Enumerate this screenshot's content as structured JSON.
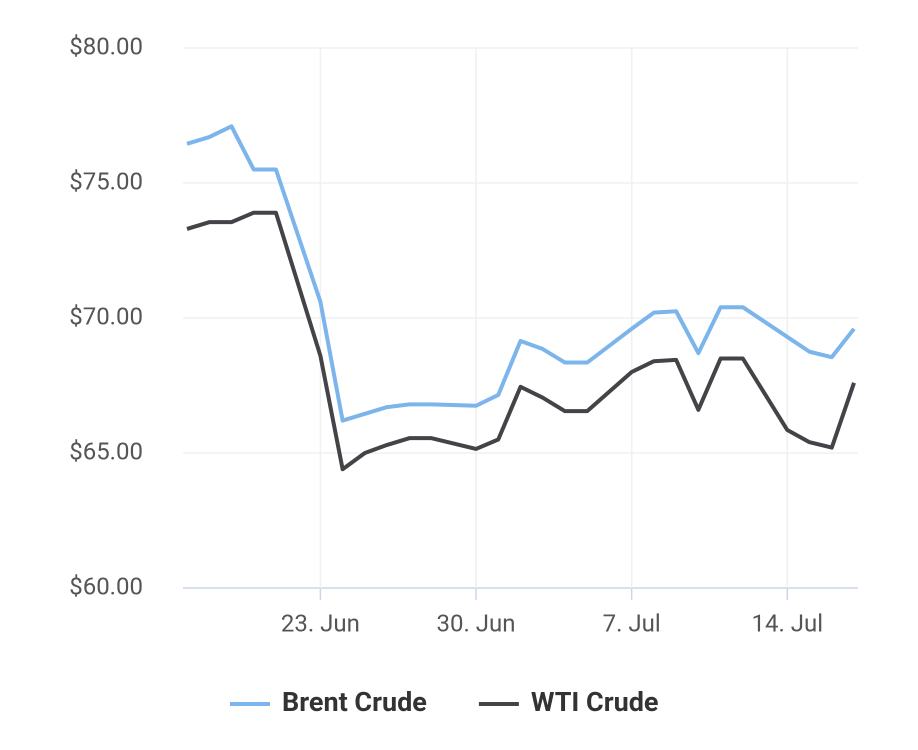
{
  "chart_data": {
    "type": "line",
    "x": [
      "17. Jun",
      "18. Jun",
      "19. Jun",
      "20. Jun",
      "21. Jun",
      "23. Jun",
      "24. Jun",
      "25. Jun",
      "26. Jun",
      "27. Jun",
      "28. Jun",
      "30. Jun",
      "1. Jul",
      "2. Jul",
      "3. Jul",
      "4. Jul",
      "5. Jul",
      "7. Jul",
      "8. Jul",
      "9. Jul",
      "10. Jul",
      "11. Jul",
      "12. Jul",
      "14. Jul",
      "15. Jul",
      "16. Jul",
      "17. Jul"
    ],
    "series": [
      {
        "name": "Brent Crude",
        "color": "#7cb5ec",
        "values": [
          76.45,
          76.7,
          77.1,
          75.5,
          75.5,
          70.6,
          66.2,
          66.45,
          66.7,
          66.8,
          66.8,
          66.75,
          67.15,
          69.15,
          68.85,
          68.35,
          68.35,
          69.6,
          70.2,
          70.25,
          68.7,
          70.4,
          70.4,
          69.3,
          68.75,
          68.55,
          69.6
        ]
      },
      {
        "name": "WTI Crude",
        "color": "#434348",
        "values": [
          73.3,
          73.55,
          73.55,
          73.9,
          73.9,
          68.6,
          64.4,
          65.0,
          65.3,
          65.55,
          65.55,
          65.15,
          65.5,
          67.45,
          67.05,
          66.55,
          66.55,
          68.0,
          68.4,
          68.45,
          66.6,
          68.5,
          68.5,
          65.85,
          65.4,
          65.2,
          67.6
        ]
      }
    ],
    "xlim": [
      "17. Jun",
      "17. Jul"
    ],
    "xticks": [
      "23. Jun",
      "30. Jun",
      "7. Jul",
      "14. Jul"
    ],
    "ylim": [
      60,
      80
    ],
    "yticks": [
      {
        "value": 60,
        "label": "$60.00"
      },
      {
        "value": 65,
        "label": "$65.00"
      },
      {
        "value": 70,
        "label": "$70.00"
      },
      {
        "value": 75,
        "label": "$75.00"
      },
      {
        "value": 80,
        "label": "$80.00"
      }
    ],
    "grid": true,
    "legend": "bottom"
  }
}
